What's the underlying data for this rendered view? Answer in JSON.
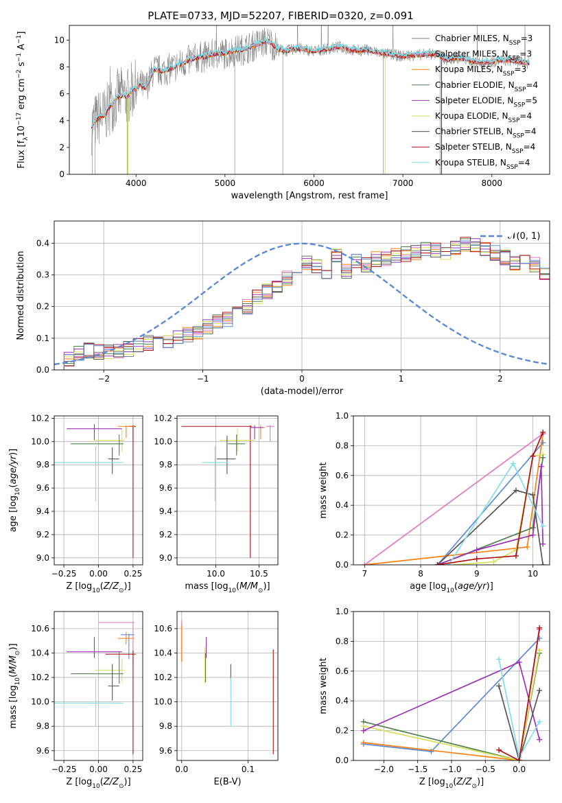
{
  "chart_data": [
    {
      "id": "spectrum",
      "type": "line",
      "title": "PLATE=0733, MJD=52207, FIBERID=0320, z=0.091",
      "xlabel": "wavelength [Angstrom, rest frame]",
      "ylabel": "Flux [f_λ 10^-17 erg cm^-2 s^-1 A^-1]",
      "xlim": [
        3250,
        8650
      ],
      "ylim": [
        0,
        11.1
      ],
      "xticks": [
        4000,
        5000,
        6000,
        7000,
        8000
      ],
      "yticks": [
        0,
        2,
        4,
        6,
        8,
        10
      ],
      "grid": false,
      "legend_position": "upper-right",
      "series": [
        {
          "name": "Chabrier MILES, N_SSP=3",
          "color": "#7f7f7f"
        },
        {
          "name": "Salpeter MILES, N_SSP=3",
          "color": "#e377c2"
        },
        {
          "name": "Kroupa MILES, N_SSP=3",
          "color": "#ff7f0e"
        },
        {
          "name": "Chabrier ELODIE, N_SSP=4",
          "color": "#4f7f4f"
        },
        {
          "name": "Salpeter ELODIE, N_SSP=5",
          "color": "#9b30b5"
        },
        {
          "name": "Kroupa ELODIE, N_SSP=4",
          "color": "#d4e157"
        },
        {
          "name": "Chabrier STELIB, N_SSP=4",
          "color": "#555555"
        },
        {
          "name": "Salpeter STELIB, N_SSP=4",
          "color": "#b01010"
        },
        {
          "name": "Kroupa STELIB, N_SSP=4",
          "color": "#80deea"
        }
      ],
      "model_x": [
        3500,
        3550,
        3600,
        3650,
        3700,
        3750,
        3800,
        3850,
        3900,
        3950,
        4000,
        4050,
        4100,
        4150,
        4200,
        4300,
        4400,
        4500,
        4600,
        4700,
        4800,
        4900,
        5000,
        5100,
        5200,
        5300,
        5400,
        5500,
        5600,
        5700,
        5800,
        5900,
        6000,
        6100,
        6200,
        6300,
        6400,
        6500,
        6600,
        6700,
        6800,
        6900,
        7000,
        7100,
        7200,
        7300,
        7400,
        7500,
        7600,
        7700,
        7800,
        7900,
        8000,
        8100,
        8200,
        8300,
        8400
      ],
      "model_y": [
        3.6,
        4.0,
        4.3,
        4.4,
        5.0,
        5.4,
        5.8,
        5.9,
        5.8,
        6.2,
        6.4,
        6.7,
        6.4,
        7.0,
        7.8,
        7.7,
        7.9,
        8.2,
        8.5,
        8.7,
        8.8,
        9.0,
        9.0,
        9.2,
        9.3,
        9.5,
        9.8,
        9.9,
        9.3,
        9.2,
        9.4,
        9.3,
        9.2,
        9.3,
        9.4,
        9.5,
        9.3,
        9.2,
        9.3,
        9.1,
        9.0,
        8.9,
        8.8,
        8.9,
        8.9,
        9.0,
        8.9,
        8.5,
        8.7,
        8.6,
        8.4,
        8.3,
        8.4,
        8.5,
        8.5,
        8.4,
        8.3
      ]
    },
    {
      "id": "residuals",
      "type": "step",
      "xlabel": "(data-model)/error",
      "ylabel": "Normed distribution",
      "xlim": [
        -2.5,
        2.5
      ],
      "ylim": [
        0,
        0.47
      ],
      "xticks": [
        -2,
        -1,
        0,
        1,
        2
      ],
      "yticks": [
        0.0,
        0.1,
        0.2,
        0.3,
        0.4
      ],
      "grid": true,
      "legend": [
        {
          "name": "𝒩(0, 1)",
          "color": "#5b8bd5",
          "style": "dashed"
        }
      ],
      "bin_width": 0.1,
      "bin_start": -2.5,
      "base_values": [
        0.02,
        0.035,
        0.055,
        0.06,
        0.055,
        0.06,
        0.06,
        0.065,
        0.08,
        0.085,
        0.085,
        0.09,
        0.1,
        0.11,
        0.12,
        0.135,
        0.15,
        0.16,
        0.18,
        0.2,
        0.23,
        0.25,
        0.26,
        0.29,
        0.32,
        0.34,
        0.33,
        0.3,
        0.36,
        0.31,
        0.345,
        0.33,
        0.35,
        0.35,
        0.36,
        0.365,
        0.37,
        0.38,
        0.38,
        0.37,
        0.385,
        0.4,
        0.39,
        0.38,
        0.37,
        0.355,
        0.34,
        0.34,
        0.33,
        0.3,
        0.3,
        0.28,
        0.26,
        0.24,
        0.23,
        0.2,
        0.19,
        0.17,
        0.16,
        0.15,
        0.14,
        0.13,
        0.12,
        0.11,
        0.11,
        0.1,
        0.09,
        0.09,
        0.085,
        0.08,
        0.07,
        0.06,
        0.05,
        0.04,
        0.035,
        0.03
      ]
    },
    {
      "id": "age_vs_Z",
      "type": "errorbar",
      "xlabel": "Z [log10(Z/Z☉)]",
      "ylabel": "age  [log10(age/yr)]",
      "xlim": [
        -0.32,
        0.32
      ],
      "ylim": [
        8.94,
        10.22
      ],
      "xticks": [
        -0.25,
        0.0,
        0.25
      ],
      "xticklabels": [
        "−0.25",
        "0.00",
        "0.25"
      ],
      "yticks": [
        9.0,
        9.2,
        9.4,
        9.6,
        9.8,
        10.0,
        10.2
      ],
      "grid": true,
      "points": [
        {
          "x": 0.25,
          "y": 10.13,
          "xerr": [
            0.04,
            0.02
          ],
          "yerr": [
            0.13,
            0.01
          ],
          "color": "#e377c2"
        },
        {
          "x": 0.25,
          "y": 10.13,
          "xerr": [
            0.03,
            0.02
          ],
          "yerr": [
            1.13,
            0.01
          ],
          "color": "#b01010"
        },
        {
          "x": 0.2,
          "y": 10.13,
          "xerr": [
            0.06,
            0.06
          ],
          "yerr": [
            0.1,
            0.01
          ],
          "color": "#ff7f0e"
        },
        {
          "x": -0.03,
          "y": 10.11,
          "xerr": [
            0.2,
            0.2
          ],
          "yerr": [
            0.1,
            0.04
          ],
          "color": "#9b30b5"
        },
        {
          "x": 0.17,
          "y": 10.01,
          "xerr": [
            0.2,
            0.02
          ],
          "yerr": [
            0.1,
            0.1
          ],
          "color": "#d4e157"
        },
        {
          "x": 0.15,
          "y": 9.98,
          "xerr": [
            0.35,
            0.03
          ],
          "yerr": [
            0.1,
            0.08
          ],
          "color": "#4f7f4f"
        },
        {
          "x": 0.1,
          "y": 9.85,
          "xerr": [
            0.03,
            0.05
          ],
          "yerr": [
            0.13,
            0.1
          ],
          "color": "#555555"
        },
        {
          "x": -0.02,
          "y": 9.82,
          "xerr": [
            0.3,
            0.2
          ],
          "yerr": [
            0.33,
            0.14
          ],
          "color": "#80deea"
        }
      ]
    },
    {
      "id": "age_vs_mass",
      "type": "errorbar",
      "xlabel": "mass [log10(M/M☉)]",
      "ylabel": "",
      "xlim": [
        9.55,
        10.72
      ],
      "ylim": [
        8.94,
        10.22
      ],
      "xticks": [
        10.0,
        10.5
      ],
      "yticks": [
        9.0,
        9.2,
        9.4,
        9.6,
        9.8,
        10.0,
        10.2
      ],
      "grid": true,
      "points": [
        {
          "x": 10.63,
          "y": 10.13,
          "xerr": [
            0.05,
            0.05
          ],
          "yerr": [
            0.13,
            0.01
          ],
          "color": "#e377c2"
        },
        {
          "x": 10.4,
          "y": 10.13,
          "xerr": [
            0.8,
            0.02
          ],
          "yerr": [
            1.13,
            0.01
          ],
          "color": "#b01010"
        },
        {
          "x": 10.52,
          "y": 10.12,
          "xerr": [
            0.05,
            0.05
          ],
          "yerr": [
            0.1,
            0.02
          ],
          "color": "#ff7f0e"
        },
        {
          "x": 10.45,
          "y": 10.12,
          "xerr": [
            0.05,
            0.1
          ],
          "yerr": [
            0.1,
            0.02
          ],
          "color": "#9b30b5"
        },
        {
          "x": 10.25,
          "y": 10.01,
          "xerr": [
            0.2,
            0.2
          ],
          "yerr": [
            0.1,
            0.1
          ],
          "color": "#d4e157"
        },
        {
          "x": 10.24,
          "y": 9.98,
          "xerr": [
            0.1,
            0.1
          ],
          "yerr": [
            0.1,
            0.08
          ],
          "color": "#4f7f4f"
        },
        {
          "x": 10.13,
          "y": 9.85,
          "xerr": [
            0.12,
            0.1
          ],
          "yerr": [
            0.13,
            0.2
          ],
          "color": "#555555"
        },
        {
          "x": 9.99,
          "y": 9.82,
          "xerr": [
            0.15,
            0.15
          ],
          "yerr": [
            0.33,
            0.14
          ],
          "color": "#80deea"
        }
      ]
    },
    {
      "id": "massweight_vs_age",
      "type": "line",
      "xlabel": "age  [log10(age/yr)]",
      "ylabel": "mass weight",
      "xlim": [
        6.8,
        10.3
      ],
      "ylim": [
        0,
        1.0
      ],
      "xticks": [
        7,
        8,
        9,
        10
      ],
      "yticks": [
        0.0,
        0.2,
        0.4,
        0.6,
        0.8,
        1.0
      ],
      "grid": true,
      "series": [
        {
          "color": "#5b8bd5",
          "x": [
            8.3,
            10.18
          ],
          "y": [
            0.0,
            0.82
          ]
        },
        {
          "color": "#ff7f0e",
          "x": [
            7.0,
            9.9,
            10.18
          ],
          "y": [
            0.0,
            0.12,
            0.88
          ]
        },
        {
          "color": "#e377c2",
          "x": [
            7.0,
            10.18
          ],
          "y": [
            0.0,
            0.88
          ]
        },
        {
          "color": "#d4e157",
          "x": [
            8.6,
            9.3,
            9.7,
            10.0,
            10.18
          ],
          "y": [
            0.0,
            0.02,
            0.1,
            0.73,
            0.74
          ]
        },
        {
          "color": "#4f7f4f",
          "x": [
            8.3,
            10.0,
            10.18
          ],
          "y": [
            0.0,
            0.25,
            0.72
          ]
        },
        {
          "color": "#9b30b5",
          "x": [
            8.3,
            9.0,
            10.0,
            10.15,
            10.18
          ],
          "y": [
            0.0,
            0.1,
            0.2,
            0.66,
            0.14
          ]
        },
        {
          "color": "#555555",
          "x": [
            8.3,
            9.7,
            10.0,
            10.18
          ],
          "y": [
            0.0,
            0.5,
            0.47,
            0.0
          ]
        },
        {
          "color": "#80deea",
          "x": [
            8.5,
            9.65,
            10.18
          ],
          "y": [
            0.0,
            0.68,
            0.26
          ]
        },
        {
          "color": "#b01010",
          "x": [
            8.3,
            9.0,
            9.7,
            10.0,
            10.18
          ],
          "y": [
            0.0,
            0.04,
            0.06,
            0.73,
            0.89
          ]
        }
      ]
    },
    {
      "id": "mass_vs_Z",
      "type": "errorbar",
      "xlabel": "Z [log10(Z/Z☉)]",
      "ylabel": "mass [log10(M/M☉)]",
      "xlim": [
        -0.32,
        0.32
      ],
      "ylim": [
        9.52,
        10.74
      ],
      "xticks": [
        -0.25,
        0.0,
        0.25
      ],
      "xticklabels": [
        "−0.25",
        "0.00",
        "0.25"
      ],
      "yticks": [
        9.6,
        9.8,
        10.0,
        10.2,
        10.4,
        10.6
      ],
      "grid": true,
      "points": [
        {
          "x": 0.25,
          "y": 10.65,
          "xerr": [
            0.25,
            0.01
          ],
          "yerr": [
            0.33,
            0.01
          ],
          "color": "#e377c2"
        },
        {
          "x": 0.22,
          "y": 10.55,
          "xerr": [
            0.06,
            0.04
          ],
          "yerr": [
            0.2,
            0.01
          ],
          "color": "#5b8bd5"
        },
        {
          "x": 0.2,
          "y": 10.52,
          "xerr": [
            0.06,
            0.06
          ],
          "yerr": [
            0.05,
            0.05
          ],
          "color": "#ff7f0e"
        },
        {
          "x": -0.03,
          "y": 10.41,
          "xerr": [
            0.2,
            0.2
          ],
          "yerr": [
            0.05,
            0.12
          ],
          "color": "#9b30b5"
        },
        {
          "x": 0.25,
          "y": 10.39,
          "xerr": [
            0.2,
            0.02
          ],
          "yerr": [
            0.82,
            0.03
          ],
          "color": "#b01010"
        },
        {
          "x": 0.17,
          "y": 10.26,
          "xerr": [
            0.2,
            0.02
          ],
          "yerr": [
            0.1,
            0.1
          ],
          "color": "#d4e157"
        },
        {
          "x": 0.15,
          "y": 10.23,
          "xerr": [
            0.35,
            0.03
          ],
          "yerr": [
            0.08,
            0.18
          ],
          "color": "#4f7f4f"
        },
        {
          "x": 0.1,
          "y": 10.13,
          "xerr": [
            0.03,
            0.05
          ],
          "yerr": [
            0.12,
            0.18
          ],
          "color": "#555555"
        },
        {
          "x": -0.02,
          "y": 9.99,
          "xerr": [
            0.3,
            0.2
          ],
          "yerr": [
            0.19,
            0.2
          ],
          "color": "#80deea"
        }
      ]
    },
    {
      "id": "mass_vs_ebv",
      "type": "errorbar",
      "xlabel": "E(B-V)",
      "ylabel": "",
      "xlim": [
        -0.007,
        0.145
      ],
      "ylim": [
        9.52,
        10.74
      ],
      "xticks": [
        0.0,
        0.1
      ],
      "yticks": [
        9.6,
        9.8,
        10.0,
        10.2,
        10.4,
        10.6
      ],
      "grid": true,
      "points": [
        {
          "x": 0.0,
          "y": 10.5,
          "xerr": [
            0,
            0
          ],
          "yerr": [
            0.17,
            0.17
          ],
          "color": "#e377c2"
        },
        {
          "x": 0.0,
          "y": 10.48,
          "xerr": [
            0,
            0
          ],
          "yerr": [
            0.15,
            0.15
          ],
          "color": "#ff7f0e"
        },
        {
          "x": 0.037,
          "y": 10.41,
          "xerr": [
            0,
            0
          ],
          "yerr": [
            0.05,
            0.12
          ],
          "color": "#9b30b5"
        },
        {
          "x": 0.035,
          "y": 10.3,
          "xerr": [
            0,
            0
          ],
          "yerr": [
            0.15,
            0.15
          ],
          "color": "#d4e157"
        },
        {
          "x": 0.036,
          "y": 10.28,
          "xerr": [
            0,
            0
          ],
          "yerr": [
            0.12,
            0.12
          ],
          "color": "#4f7f4f"
        },
        {
          "x": 0.074,
          "y": 10.21,
          "xerr": [
            0,
            0
          ],
          "yerr": [
            0.02,
            0.1
          ],
          "color": "#555555"
        },
        {
          "x": 0.074,
          "y": 10.0,
          "xerr": [
            0,
            0
          ],
          "yerr": [
            0.2,
            0.2
          ],
          "color": "#80deea"
        },
        {
          "x": 0.138,
          "y": 10.0,
          "xerr": [
            0,
            0
          ],
          "yerr": [
            0.43,
            0.43
          ],
          "color": "#b01010"
        }
      ]
    },
    {
      "id": "massweight_vs_Z",
      "type": "line",
      "xlabel": "Z [log10(Z/Z☉)]",
      "ylabel": "mass weight",
      "xlim": [
        -2.45,
        0.45
      ],
      "ylim": [
        0,
        1.0
      ],
      "xticks": [
        -2.0,
        -1.5,
        -1.0,
        -0.5,
        0.0
      ],
      "xticklabels": [
        "−2.0",
        "−1.5",
        "−1.0",
        "−0.5",
        "0.0"
      ],
      "yticks": [
        0.0,
        0.2,
        0.4,
        0.6,
        0.8,
        1.0
      ],
      "grid": true,
      "series": [
        {
          "color": "#5b8bd5",
          "x": [
            -2.3,
            -1.3,
            0.3
          ],
          "y": [
            0.11,
            0.06,
            0.82
          ]
        },
        {
          "color": "#ff7f0e",
          "x": [
            -2.3,
            0.0,
            0.3
          ],
          "y": [
            0.12,
            0.0,
            0.88
          ]
        },
        {
          "color": "#e377c2",
          "x": [
            0.0,
            0.3
          ],
          "y": [
            0.0,
            0.88
          ]
        },
        {
          "color": "#4f7f4f",
          "x": [
            -2.3,
            0.0,
            0.3
          ],
          "y": [
            0.26,
            0.0,
            0.72
          ]
        },
        {
          "color": "#d4e157",
          "x": [
            -2.3,
            0.0,
            0.3
          ],
          "y": [
            0.23,
            0.0,
            0.74
          ]
        },
        {
          "color": "#9b30b5",
          "x": [
            -2.3,
            0.0,
            0.3
          ],
          "y": [
            0.2,
            0.66,
            0.14
          ]
        },
        {
          "color": "#555555",
          "x": [
            -0.3,
            0.0,
            0.3
          ],
          "y": [
            0.5,
            0.0,
            0.47
          ]
        },
        {
          "color": "#80deea",
          "x": [
            -0.3,
            0.0,
            0.3
          ],
          "y": [
            0.68,
            0.02,
            0.26
          ]
        },
        {
          "color": "#b01010",
          "x": [
            -0.3,
            0.0,
            0.3
          ],
          "y": [
            0.07,
            0.0,
            0.89
          ]
        }
      ]
    }
  ]
}
